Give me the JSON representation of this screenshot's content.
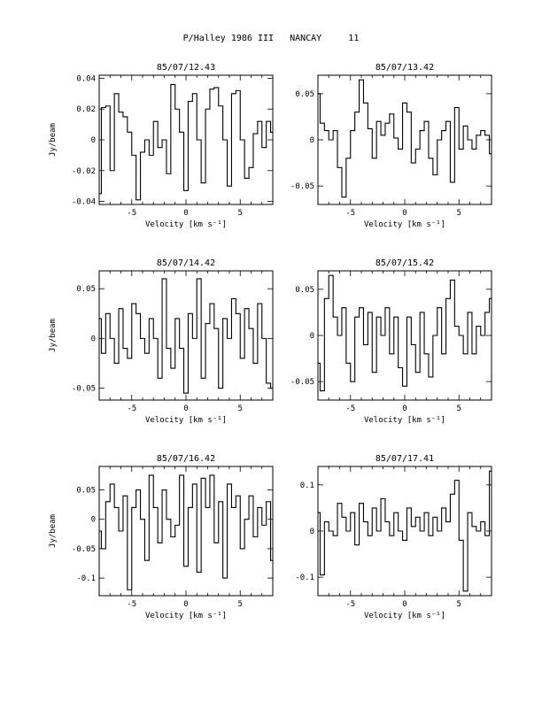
{
  "page_title": "P/Halley 1986 III   NANCAY     11",
  "chart_data": [
    {
      "type": "line",
      "title": "85/07/12.43",
      "xlabel": "Velocity [km s⁻¹]",
      "ylabel": "Jy/beam",
      "xlim": [
        -8,
        8
      ],
      "ylim": [
        -0.042,
        0.042
      ],
      "xticks": [
        -5,
        0,
        5
      ],
      "yticks": [
        0.04,
        0.02,
        0,
        -0.02,
        -0.04
      ],
      "ytick_labels": [
        "0.04",
        "0.02",
        "0",
        "-0.02",
        "-0.04"
      ],
      "series": [
        {
          "x": [
            -8,
            -7.6,
            -7.2,
            -6.8,
            -6.4,
            -6,
            -5.6,
            -5.2,
            -4.8,
            -4.4,
            -4,
            -3.6,
            -3.2,
            -2.8,
            -2.4,
            -2,
            -1.6,
            -1.2,
            -0.8,
            -0.4,
            0,
            0.4,
            0.8,
            1.2,
            1.6,
            2,
            2.4,
            2.8,
            3.2,
            3.6,
            4,
            4.4,
            4.8,
            5.2,
            5.6,
            6,
            6.4,
            6.8,
            7.2,
            7.6,
            8
          ],
          "y": [
            -0.035,
            0.021,
            0.022,
            -0.02,
            0.03,
            0.018,
            0.015,
            0.005,
            -0.01,
            -0.039,
            -0.008,
            0.0,
            -0.01,
            0.012,
            -0.005,
            0.0,
            -0.022,
            0.036,
            0.02,
            0.005,
            -0.033,
            0.025,
            0.03,
            0.0,
            -0.028,
            0.02,
            0.033,
            0.034,
            0.022,
            0.0,
            -0.03,
            0.03,
            0.032,
            0.0,
            -0.025,
            -0.018,
            0.004,
            0.012,
            -0.005,
            0.012,
            0.005
          ]
        }
      ]
    },
    {
      "type": "line",
      "title": "85/07/13.42",
      "xlabel": "Velocity [km s⁻¹]",
      "ylabel": "",
      "xlim": [
        -8,
        8
      ],
      "ylim": [
        -0.07,
        0.07
      ],
      "xticks": [
        -5,
        0,
        5
      ],
      "yticks": [
        0.05,
        0,
        -0.05
      ],
      "ytick_labels": [
        "0.05",
        "0",
        "-0.05"
      ],
      "series": [
        {
          "x": [
            -8,
            -7.6,
            -7.2,
            -6.8,
            -6.4,
            -6,
            -5.6,
            -5.2,
            -4.8,
            -4.4,
            -4,
            -3.6,
            -3.2,
            -2.8,
            -2.4,
            -2,
            -1.6,
            -1.2,
            -0.8,
            -0.4,
            0,
            0.4,
            0.8,
            1.2,
            1.6,
            2,
            2.4,
            2.8,
            3.2,
            3.6,
            4,
            4.4,
            4.8,
            5.2,
            5.6,
            6,
            6.4,
            6.8,
            7.2,
            7.6,
            8
          ],
          "y": [
            0.05,
            0.018,
            0.01,
            0.0,
            0.01,
            -0.03,
            -0.062,
            -0.02,
            0.01,
            0.03,
            0.065,
            0.04,
            0.012,
            -0.02,
            0.02,
            0.005,
            0.018,
            0.028,
            0.002,
            -0.01,
            0.04,
            0.03,
            -0.025,
            -0.01,
            0.01,
            0.02,
            -0.02,
            -0.038,
            0.0,
            0.01,
            0.02,
            -0.046,
            0.035,
            -0.01,
            0.015,
            0.0,
            -0.01,
            0.005,
            0.01,
            0.005,
            -0.015
          ]
        }
      ]
    },
    {
      "type": "line",
      "title": "85/07/14.42",
      "xlabel": "Velocity [km s⁻¹]",
      "ylabel": "Jy/beam",
      "xlim": [
        -8,
        8
      ],
      "ylim": [
        -0.062,
        0.068
      ],
      "xticks": [
        -5,
        0,
        5
      ],
      "yticks": [
        0.05,
        0,
        -0.05
      ],
      "ytick_labels": [
        "0.05",
        "0",
        "-0.05"
      ],
      "series": [
        {
          "x": [
            -8,
            -7.6,
            -7.2,
            -6.8,
            -6.4,
            -6,
            -5.6,
            -5.2,
            -4.8,
            -4.4,
            -4,
            -3.6,
            -3.2,
            -2.8,
            -2.4,
            -2,
            -1.6,
            -1.2,
            -0.8,
            -0.4,
            0,
            0.4,
            0.8,
            1.2,
            1.6,
            2,
            2.4,
            2.8,
            3.2,
            3.6,
            4,
            4.4,
            4.8,
            5.2,
            5.6,
            6,
            6.4,
            6.8,
            7.2,
            7.6,
            8
          ],
          "y": [
            0.02,
            -0.015,
            0.025,
            0.0,
            -0.025,
            0.03,
            -0.01,
            -0.02,
            0.035,
            0.025,
            0.0,
            -0.015,
            0.02,
            0.0,
            -0.04,
            0.06,
            -0.01,
            -0.03,
            0.02,
            -0.01,
            -0.055,
            0.025,
            0.0,
            0.06,
            -0.04,
            0.015,
            0.035,
            0.01,
            -0.05,
            0.02,
            0.0,
            0.04,
            0.025,
            -0.02,
            0.03,
            0.01,
            -0.025,
            0.035,
            0.0,
            -0.045,
            -0.05
          ]
        }
      ]
    },
    {
      "type": "line",
      "title": "85/07/15.42",
      "xlabel": "Velocity [km s⁻¹]",
      "ylabel": "",
      "xlim": [
        -8,
        8
      ],
      "ylim": [
        -0.07,
        0.07
      ],
      "xticks": [
        -5,
        0,
        5
      ],
      "yticks": [
        0.05,
        0,
        -0.05
      ],
      "ytick_labels": [
        "0.05",
        "0",
        "-0.05"
      ],
      "series": [
        {
          "x": [
            -8,
            -7.6,
            -7.2,
            -6.8,
            -6.4,
            -6,
            -5.6,
            -5.2,
            -4.8,
            -4.4,
            -4,
            -3.6,
            -3.2,
            -2.8,
            -2.4,
            -2,
            -1.6,
            -1.2,
            -0.8,
            -0.4,
            0,
            0.4,
            0.8,
            1.2,
            1.6,
            2,
            2.4,
            2.8,
            3.2,
            3.6,
            4,
            4.4,
            4.8,
            5.2,
            5.6,
            6,
            6.4,
            6.8,
            7.2,
            7.6,
            8
          ],
          "y": [
            -0.03,
            -0.06,
            0.04,
            0.065,
            0.02,
            0.0,
            0.03,
            -0.03,
            -0.05,
            0.02,
            0.03,
            -0.01,
            0.025,
            -0.04,
            0.02,
            0.0,
            0.03,
            -0.02,
            0.02,
            -0.035,
            -0.055,
            0.02,
            -0.01,
            -0.04,
            0.025,
            -0.02,
            -0.045,
            0.0,
            0.03,
            -0.02,
            0.04,
            0.06,
            0.01,
            0.0,
            -0.02,
            0.025,
            -0.02,
            0.01,
            0.0,
            0.025,
            0.04
          ]
        }
      ]
    },
    {
      "type": "line",
      "title": "85/07/16.42",
      "xlabel": "Velocity [km s⁻¹]",
      "ylabel": "Jy/beam",
      "xlim": [
        -8,
        8
      ],
      "ylim": [
        -0.13,
        0.09
      ],
      "xticks": [
        -5,
        0,
        5
      ],
      "yticks": [
        0.05,
        0,
        -0.05,
        -0.1
      ],
      "ytick_labels": [
        "0.05",
        "0",
        "-0.05",
        "-0.1"
      ],
      "series": [
        {
          "x": [
            -8,
            -7.6,
            -7.2,
            -6.8,
            -6.4,
            -6,
            -5.6,
            -5.2,
            -4.8,
            -4.4,
            -4,
            -3.6,
            -3.2,
            -2.8,
            -2.4,
            -2,
            -1.6,
            -1.2,
            -0.8,
            -0.4,
            0,
            0.4,
            0.8,
            1.2,
            1.6,
            2,
            2.4,
            2.8,
            3.2,
            3.6,
            4,
            4.4,
            4.8,
            5.2,
            5.6,
            6,
            6.4,
            6.8,
            7.2,
            7.6,
            8
          ],
          "y": [
            -0.02,
            -0.05,
            0.03,
            0.06,
            0.02,
            -0.02,
            0.04,
            -0.12,
            0.02,
            0.05,
            0.0,
            -0.07,
            0.075,
            0.02,
            -0.04,
            0.05,
            0.0,
            -0.03,
            -0.01,
            0.075,
            -0.08,
            0.02,
            0.06,
            -0.09,
            0.07,
            0.02,
            0.075,
            -0.04,
            0.03,
            -0.1,
            0.06,
            0.02,
            0.04,
            -0.05,
            0.0,
            0.04,
            -0.03,
            0.02,
            -0.01,
            0.03,
            -0.07
          ]
        }
      ]
    },
    {
      "type": "line",
      "title": "85/07/17.41",
      "xlabel": "Velocity [km s⁻¹]",
      "ylabel": "",
      "xlim": [
        -8,
        8
      ],
      "ylim": [
        -0.14,
        0.14
      ],
      "xticks": [
        -5,
        0,
        5
      ],
      "yticks": [
        0.1,
        0,
        -0.1
      ],
      "ytick_labels": [
        "0.1",
        "0",
        "-0.1"
      ],
      "series": [
        {
          "x": [
            -8,
            -7.6,
            -7.2,
            -6.8,
            -6.4,
            -6,
            -5.6,
            -5.2,
            -4.8,
            -4.4,
            -4,
            -3.6,
            -3.2,
            -2.8,
            -2.4,
            -2,
            -1.6,
            -1.2,
            -0.8,
            -0.4,
            0,
            0.4,
            0.8,
            1.2,
            1.6,
            2,
            2.4,
            2.8,
            3.2,
            3.6,
            4,
            4.4,
            4.8,
            5.2,
            5.6,
            6,
            6.4,
            6.8,
            7.2,
            7.6,
            8
          ],
          "y": [
            0.04,
            -0.095,
            0.02,
            0.0,
            -0.01,
            0.06,
            0.03,
            0.0,
            0.04,
            -0.03,
            0.06,
            0.02,
            -0.01,
            0.05,
            0.0,
            0.07,
            0.02,
            -0.01,
            0.04,
            0.0,
            -0.02,
            0.05,
            0.01,
            0.03,
            0.0,
            0.04,
            -0.01,
            0.03,
            0.0,
            0.05,
            0.02,
            0.08,
            0.11,
            -0.02,
            -0.13,
            0.04,
            0.01,
            0.0,
            0.02,
            -0.01,
            0.13
          ]
        }
      ]
    }
  ]
}
